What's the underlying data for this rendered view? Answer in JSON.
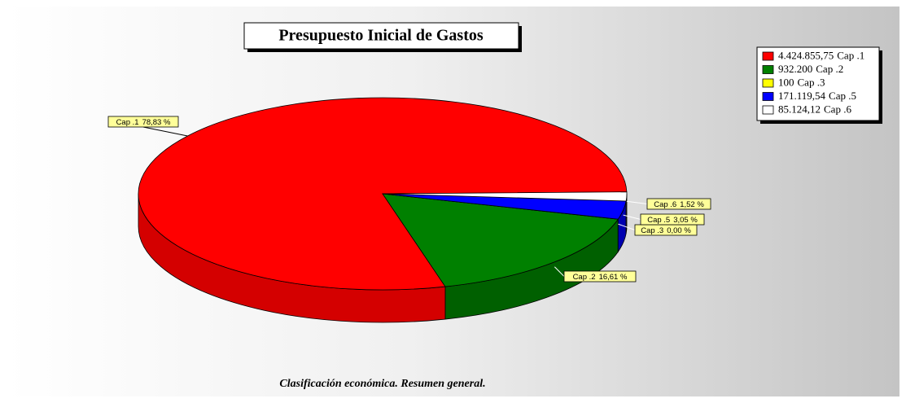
{
  "chart_data": {
    "type": "pie3d",
    "title": "Presupuesto Inicial de Gastos",
    "footer": "Clasificación económica. Resumen general.",
    "categories": [
      "Cap .1",
      "Cap .2",
      "Cap .3",
      "Cap .5",
      "Cap .6"
    ],
    "values": [
      4424855.75,
      932200,
      100,
      171119.54,
      85124.12
    ],
    "value_labels": [
      "4.424.855,75",
      "932.200",
      "100",
      "171.119,54",
      "85.124,12"
    ],
    "percentages": [
      78.83,
      16.61,
      0.0,
      3.05,
      1.52
    ],
    "percentage_labels": [
      "78,83 %",
      "16,61 %",
      "0,00 %",
      "3,05 %",
      "1,52 %"
    ],
    "colors": [
      "#ff0000",
      "#008000",
      "#ffff00",
      "#0000ff",
      "#ffffff"
    ],
    "legend": "top-right"
  }
}
